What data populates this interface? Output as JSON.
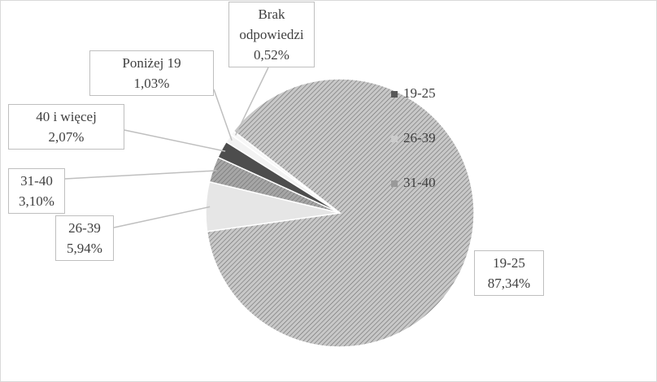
{
  "chart_data": {
    "type": "pie",
    "categories": [
      "19-25",
      "26-39",
      "31-40",
      "40 i więcej",
      "Poniżej 19",
      "Brak odpowiedzi"
    ],
    "values": [
      87.34,
      5.94,
      3.1,
      2.07,
      1.03,
      0.52
    ],
    "value_labels": [
      "87,34%",
      "5,94%",
      "3,10%",
      "2,07%",
      "1,03%",
      "0,52%"
    ],
    "colors": [
      "#c8c8c8",
      "#e6e6e6",
      "#a6a6a6",
      "#4d4d4d",
      "#f2f2f2",
      "#f7f7f7"
    ],
    "legend": {
      "position": "right",
      "entries": [
        "19-25",
        "26-39",
        "31-40"
      ],
      "colors": [
        "#595959",
        "#cccccc",
        "#999999"
      ]
    }
  }
}
